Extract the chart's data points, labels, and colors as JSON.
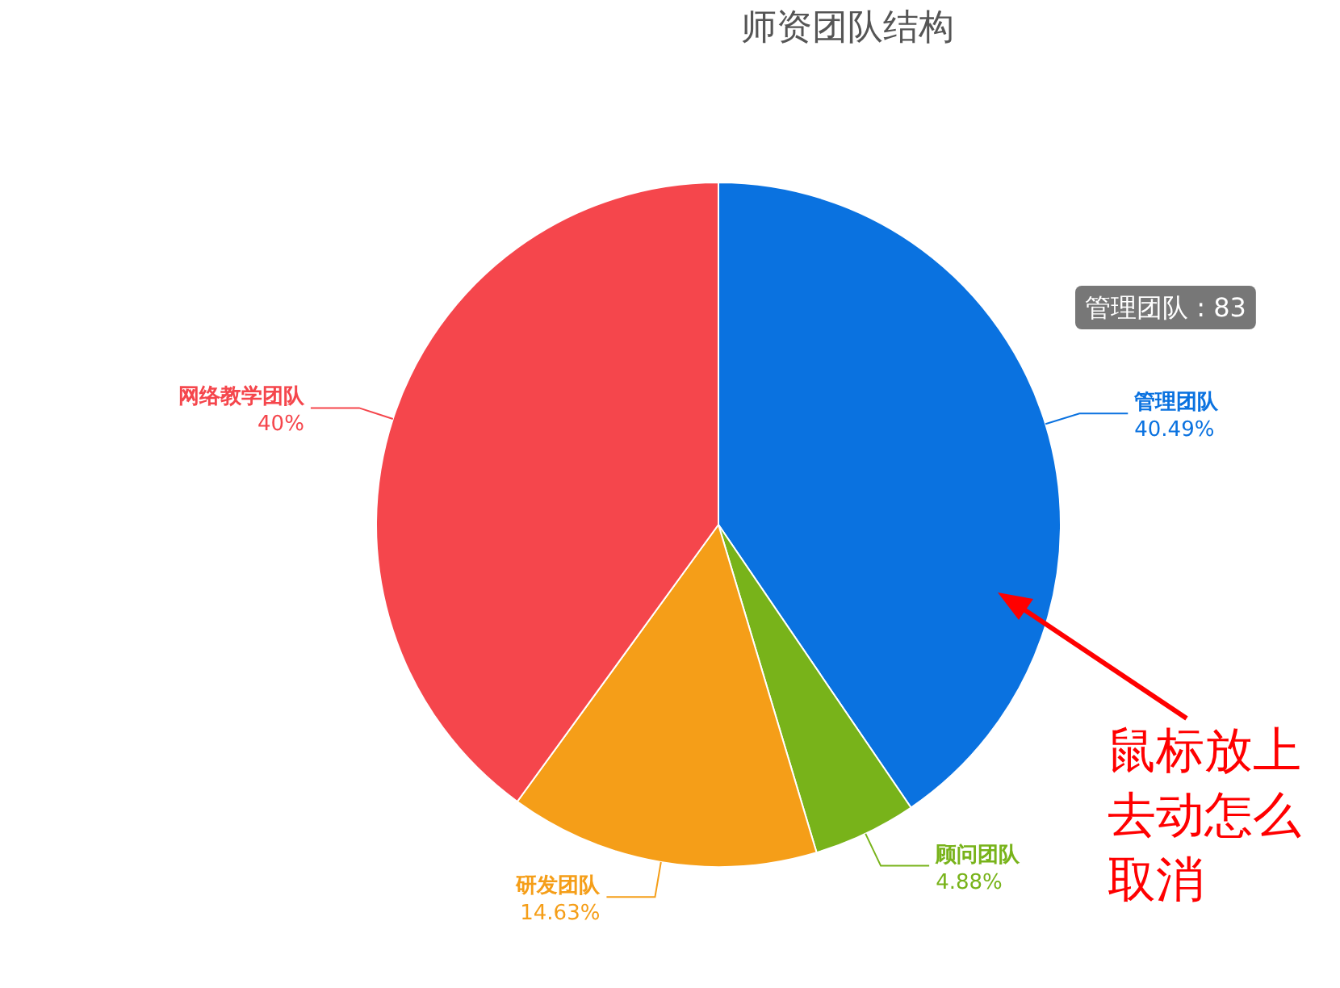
{
  "chart_data": {
    "type": "pie",
    "title": "师资团队结构",
    "categories": [
      "管理团队",
      "顾问团队",
      "研发团队",
      "网络教学团队"
    ],
    "values": [
      40.49,
      4.88,
      14.63,
      40
    ],
    "colors": [
      "#0a72e0",
      "#78b31a",
      "#f59e18",
      "#f5464c"
    ],
    "value_labels": [
      "40.49%",
      "4.88%",
      "14.63%",
      "40%"
    ],
    "annotations": [
      "管理团队 : 83",
      "鼠标放上去动怎么取消"
    ]
  }
}
